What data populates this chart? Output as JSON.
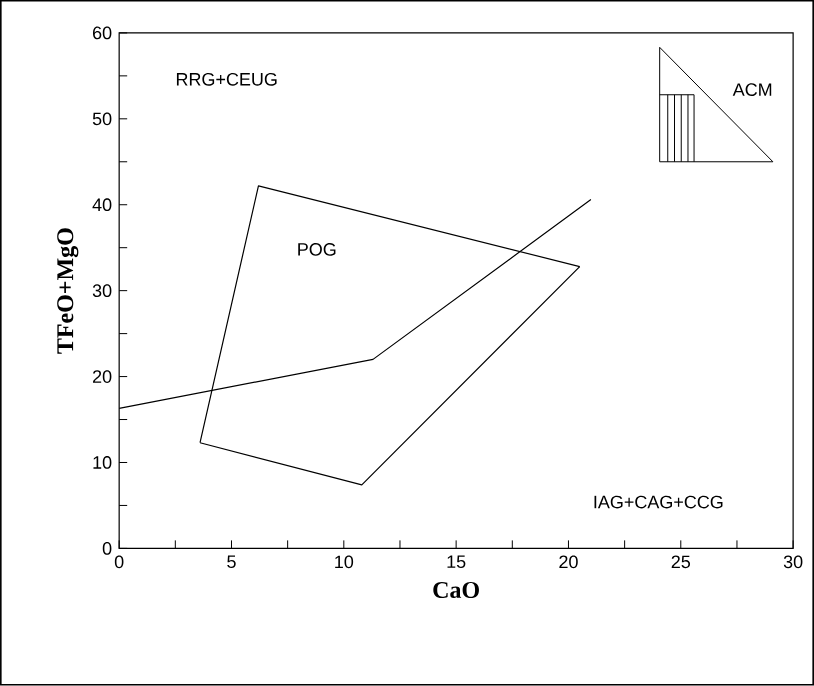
{
  "chart_data": {
    "type": "line",
    "xlabel": "CaO",
    "ylabel": "TFeO+MgO",
    "xlim": [
      0,
      30
    ],
    "ylim": [
      0,
      60
    ],
    "xticks": [
      0,
      5,
      10,
      15,
      20,
      25,
      30
    ],
    "yticks": [
      0,
      10,
      20,
      30,
      40,
      50,
      60
    ],
    "grid": false,
    "marker": "none",
    "line_style": "solid",
    "series": [
      {
        "color": "#000000",
        "x": [
          3.6,
          6.2,
          20.5
        ],
        "values": [
          12.3,
          42.2,
          32.8
        ]
      },
      {
        "color": "#000000",
        "x": [
          3.6,
          10.8,
          20.5
        ],
        "values": [
          12.3,
          7.4,
          32.8
        ]
      },
      {
        "color": "#000000",
        "x": [
          0,
          11.3,
          21.0
        ],
        "values": [
          16.3,
          22.0,
          40.6
        ]
      }
    ],
    "annotations": [
      "RRG+CEUG",
      "POG",
      "ACM",
      "IAG+CAG+CCG"
    ]
  }
}
